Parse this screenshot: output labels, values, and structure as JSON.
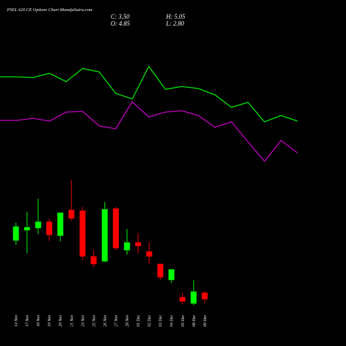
{
  "chart_data": [
    {
      "type": "candlestick",
      "title": "PSEL 420 CE Options Chart MunafaSutra.com",
      "annotations": [
        "C: 3.50",
        "H: 5.05",
        "O: 4.85",
        "L: 2.80"
      ],
      "categories": [
        "14 Nov",
        "17 Nov",
        "18 Nov",
        "19 Nov",
        "20 Nov",
        "21 Nov",
        "24 Nov",
        "25 Nov",
        "26 Nov",
        "27 Nov",
        "28 Nov",
        "01 Dec",
        "02 Dec",
        "03 Dec",
        "04 Dec",
        "05 Dec",
        "08 Dec",
        "09 Dec"
      ],
      "open": [
        14.72,
        16.7,
        17.1,
        18.42,
        15.64,
        20.67,
        20.54,
        11.8,
        10.74,
        20.94,
        12.86,
        14.45,
        12.73,
        10.35,
        7.17,
        3.99,
        2.67,
        4.85
      ],
      "high": [
        18.16,
        20.28,
        22.79,
        18.95,
        20.14,
        26.37,
        21.2,
        12.86,
        22.13,
        21.2,
        16.97,
        16.17,
        14.45,
        10.35,
        9.29,
        4.79,
        7.17,
        5.05
      ],
      "low": [
        13.92,
        12.33,
        16.04,
        14.72,
        14.58,
        18.55,
        11.01,
        9.68,
        10.61,
        12.99,
        12.07,
        12.33,
        10.35,
        7.17,
        6.64,
        2.53,
        2.4,
        2.8
      ],
      "close": [
        17.5,
        17.36,
        18.42,
        15.77,
        20.14,
        18.95,
        11.67,
        10.21,
        20.81,
        13.26,
        14.45,
        13.66,
        11.67,
        7.7,
        9.29,
        3.06,
        5.05,
        3.5
      ],
      "up_color": "#00ff00",
      "down_color": "#ff0000",
      "ylim": [
        1.21,
        27.69
      ]
    },
    {
      "type": "line",
      "categories": [
        null,
        null,
        null,
        null,
        null,
        null,
        null,
        null,
        null,
        null,
        null,
        null,
        null,
        null,
        null,
        null,
        null,
        null,
        null
      ],
      "series": [
        {
          "color": "#00ee00",
          "values": [
            139,
            139,
            138,
            144,
            132,
            151,
            146,
            115,
            107,
            154,
            121,
            125,
            122,
            113,
            95,
            102,
            74,
            83,
            75
          ]
        },
        {
          "color": "#cc00cc",
          "values": [
            76,
            76,
            79,
            75,
            88,
            89,
            68,
            64,
            103,
            81,
            88,
            90,
            83,
            66,
            74,
            45,
            17,
            47,
            29
          ]
        }
      ],
      "ylim": [
        0,
        200
      ]
    }
  ]
}
